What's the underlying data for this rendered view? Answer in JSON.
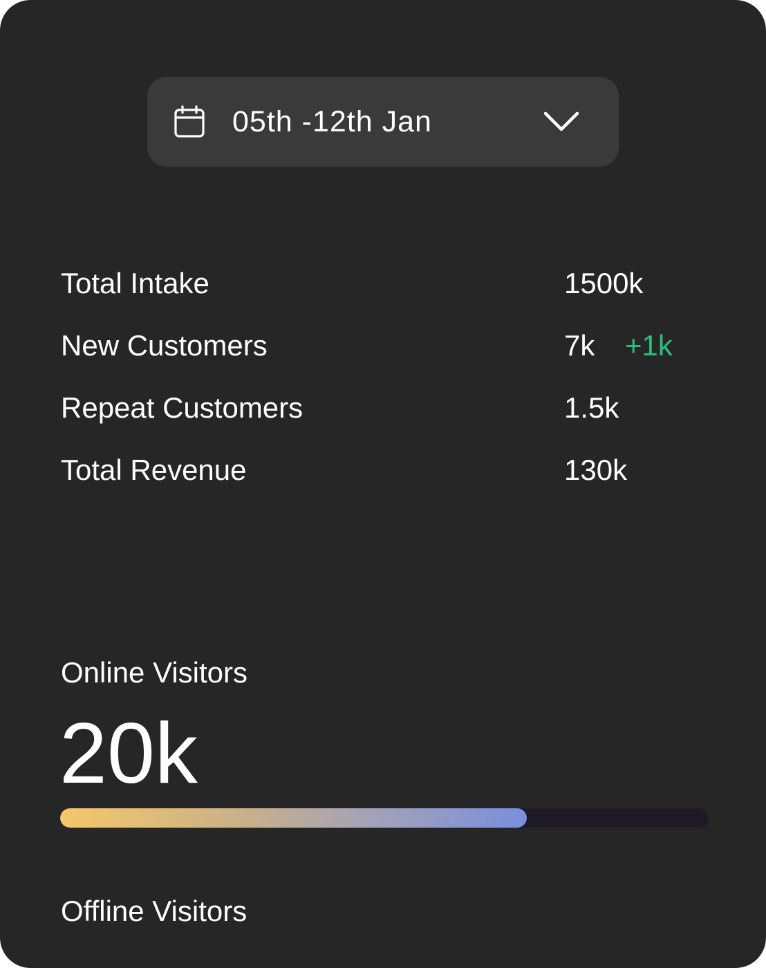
{
  "date_picker": {
    "label": "05th -12th Jan",
    "icon": "calendar-icon",
    "chevron_icon": "chevron-down-icon"
  },
  "stats": [
    {
      "label": "Total Intake",
      "value": "1500k"
    },
    {
      "label": "New Customers",
      "value": "7k",
      "delta": "+1k"
    },
    {
      "label": "Repeat Customers",
      "value": "1.5k"
    },
    {
      "label": "Total Revenue",
      "value": "130k"
    }
  ],
  "online_visitors": {
    "title": "Online Visitors",
    "value": "20k",
    "progress_percent": 72
  },
  "offline_visitors": {
    "title": "Offline Visitors"
  },
  "colors": {
    "card_background": "#262626",
    "picker_background": "#3a3a3a",
    "delta_positive": "#2bbd7e",
    "progress_start": "#f5c76a",
    "progress_end": "#7a8ede",
    "progress_track": "#1d1a26"
  }
}
